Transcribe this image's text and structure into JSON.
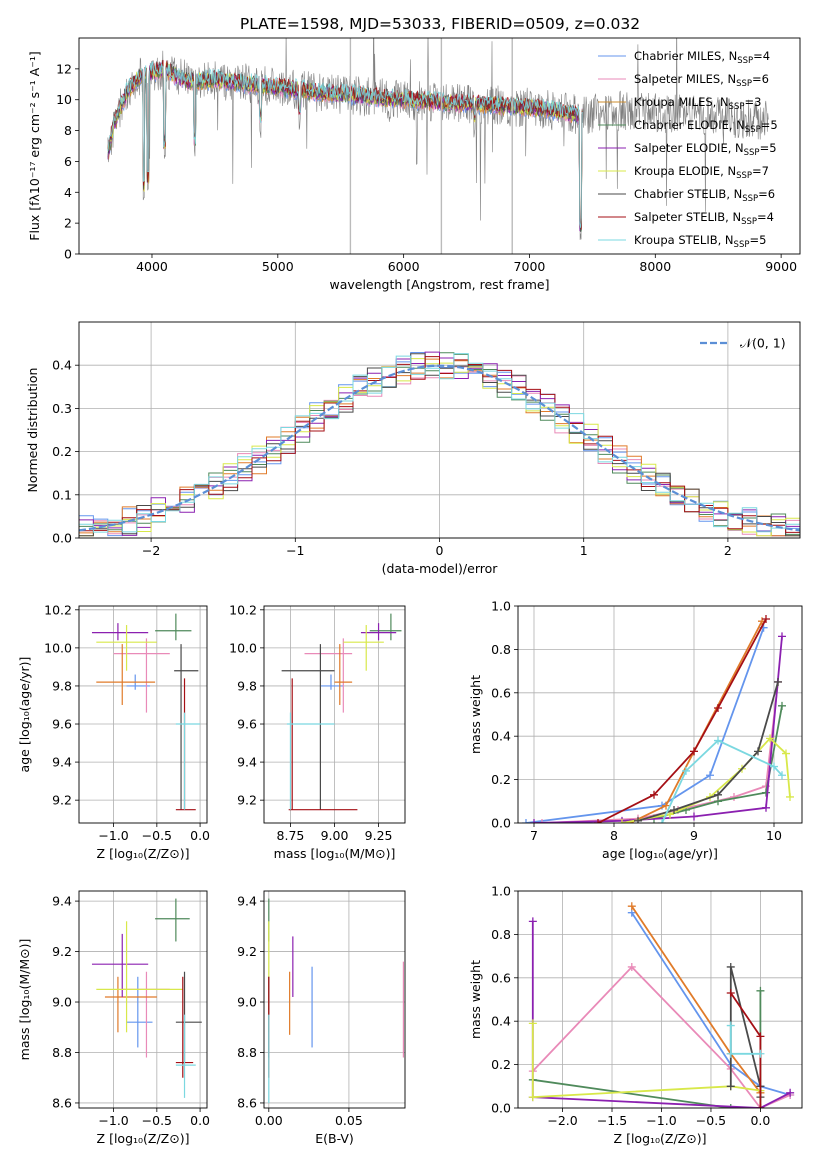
{
  "figure_title": "PLATE=1598, MJD=53033, FIBERID=0509, z=0.032",
  "colors": {
    "Chabrier MILES": "#6495ed",
    "Salpeter MILES": "#e98ab8",
    "Kroupa MILES": "#cc8c2e",
    "Chabrier ELODIE": "#4f8a5b",
    "Salpeter ELODIE": "#8b20b0",
    "Kroupa ELODIE": "#d8e84a",
    "Chabrier STELIB": "#4a4a4a",
    "Salpeter STELIB": "#a50f15",
    "Kroupa STELIB": "#7bd8e0",
    "Orange": "#e07b2a",
    "Pink": "#e377c2",
    "Gray": "#7f7f7f"
  },
  "chart_data": [
    {
      "id": "spectrum",
      "type": "line",
      "title": "PLATE=1598, MJD=53033, FIBERID=0509, z=0.032",
      "xlabel": "wavelength [Angstrom, rest frame]",
      "ylabel": "Flux [fλ10⁻¹⁷ erg cm⁻² s⁻¹ A⁻¹]",
      "xlim": [
        3420,
        9150
      ],
      "ylim": [
        0,
        14
      ],
      "xticks": [
        4000,
        5000,
        6000,
        7000,
        8000,
        9000
      ],
      "yticks": [
        0,
        2,
        4,
        6,
        8,
        10,
        12
      ],
      "grid": false,
      "legend_position": "top-right",
      "legend": [
        {
          "label": "Chabrier MILES, N",
          "sub": "SSP",
          "tail": "=4",
          "color": "#6495ed"
        },
        {
          "label": "Salpeter MILES, N",
          "sub": "SSP",
          "tail": "=6",
          "color": "#e98ab8"
        },
        {
          "label": "Kroupa MILES, N",
          "sub": "SSP",
          "tail": "=3",
          "color": "#cc8c2e"
        },
        {
          "label": "Chabrier ELODIE, N",
          "sub": "SSP",
          "tail": "=5",
          "color": "#4f8a5b"
        },
        {
          "label": "Salpeter ELODIE, N",
          "sub": "SSP",
          "tail": "=5",
          "color": "#8b20b0"
        },
        {
          "label": "Kroupa ELODIE, N",
          "sub": "SSP",
          "tail": "=7",
          "color": "#d8e84a"
        },
        {
          "label": "Chabrier STELIB, N",
          "sub": "SSP",
          "tail": "=6",
          "color": "#4a4a4a"
        },
        {
          "label": "Salpeter STELIB, N",
          "sub": "SSP",
          "tail": "=4",
          "color": "#a50f15"
        },
        {
          "label": "Kroupa STELIB, N",
          "sub": "SSP",
          "tail": "=5",
          "color": "#7bd8e0"
        }
      ],
      "continuum_x": [
        3650,
        3700,
        3800,
        3900,
        4000,
        4100,
        4200,
        4300,
        4500,
        4800,
        5000,
        5300,
        5600,
        6000,
        6400,
        6800,
        7000,
        7200,
        7400,
        7500,
        7700,
        8000,
        8300,
        8600,
        8900
      ],
      "continuum_y": [
        6.5,
        8.5,
        10.5,
        11.5,
        11.8,
        12.0,
        11.5,
        11.2,
        11.3,
        11.0,
        10.8,
        10.5,
        10.3,
        10.0,
        9.8,
        9.6,
        9.5,
        9.3,
        9.0,
        9.1,
        9.3,
        9.2,
        9.0,
        8.8,
        8.7
      ],
      "absorption_lines": [
        {
          "x": 3934,
          "y": 3.0
        },
        {
          "x": 3968,
          "y": 3.5
        },
        {
          "x": 4101,
          "y": 5.8
        },
        {
          "x": 4340,
          "y": 6.0
        },
        {
          "x": 4861,
          "y": 7.5
        },
        {
          "x": 5175,
          "y": 8.0
        },
        {
          "x": 5890,
          "y": 8.5
        },
        {
          "x": 6563,
          "y": 7.5
        },
        {
          "x": 7405,
          "y": 0.4
        },
        {
          "x": 8540,
          "y": 7.0
        },
        {
          "x": 8662,
          "y": 7.0
        }
      ],
      "model_range": [
        3650,
        7420
      ],
      "data_range": [
        3650,
        8900
      ]
    },
    {
      "id": "residual_hist",
      "type": "histogram",
      "xlabel": "(data-model)/error",
      "ylabel": "Normed distribution",
      "xlim": [
        -2.5,
        2.5
      ],
      "ylim": [
        0,
        0.5
      ],
      "xticks": [
        -2,
        -1,
        0,
        1,
        2
      ],
      "yticks": [
        0.0,
        0.1,
        0.2,
        0.3,
        0.4
      ],
      "grid": true,
      "legend_position": "top-right",
      "legend_label": "𝒩(0, 1)",
      "legend_color": "#5b8fd6",
      "bin_width": 0.1,
      "series": [
        {
          "color": "#6495ed",
          "seed": 1
        },
        {
          "color": "#e98ab8",
          "seed": 2
        },
        {
          "color": "#e07b2a",
          "seed": 3
        },
        {
          "color": "#4f8a5b",
          "seed": 4
        },
        {
          "color": "#8b20b0",
          "seed": 5
        },
        {
          "color": "#d8e84a",
          "seed": 6
        },
        {
          "color": "#4a4a4a",
          "seed": 7
        },
        {
          "color": "#a50f15",
          "seed": 8
        },
        {
          "color": "#7bd8e0",
          "seed": 9
        }
      ]
    },
    {
      "id": "age_vs_Z",
      "type": "errorbar",
      "xlabel": "Z [log₁₀(Z/Z⊙)]",
      "ylabel": "age  [log₁₀(age/yr)]",
      "xlim": [
        -1.4,
        0.08
      ],
      "ylim": [
        9.08,
        10.22
      ],
      "xticks": [
        -1.0,
        -0.5,
        0.0
      ],
      "xticklabels": [
        "−1.0",
        "−0.5",
        "0.0"
      ],
      "yticks": [
        9.2,
        9.4,
        9.6,
        9.8,
        10.0,
        10.2
      ],
      "grid": true,
      "points": [
        {
          "x": -0.75,
          "xl": -0.85,
          "xh": -0.58,
          "y": 9.8,
          "yl": 9.78,
          "yh": 9.86,
          "color": "#6495ed"
        },
        {
          "x": -0.62,
          "xl": -1.0,
          "xh": -0.35,
          "y": 9.97,
          "yl": 9.66,
          "yh": 10.05,
          "color": "#e98ab8"
        },
        {
          "x": -0.9,
          "xl": -1.2,
          "xh": -0.52,
          "y": 9.82,
          "yl": 9.7,
          "yh": 10.02,
          "color": "#e07b2a"
        },
        {
          "x": -0.28,
          "xl": -0.52,
          "xh": -0.1,
          "y": 10.09,
          "yl": 10.04,
          "yh": 10.18,
          "color": "#4f8a5b"
        },
        {
          "x": -0.95,
          "xl": -1.25,
          "xh": -0.6,
          "y": 10.08,
          "yl": 10.04,
          "yh": 10.13,
          "color": "#8b20b0"
        },
        {
          "x": -0.85,
          "xl": -1.2,
          "xh": -0.5,
          "y": 10.03,
          "yl": 9.88,
          "yh": 10.12,
          "color": "#d8e84a"
        },
        {
          "x": -0.22,
          "xl": -0.3,
          "xh": -0.02,
          "y": 9.88,
          "yl": 9.15,
          "yh": 10.02,
          "color": "#4a4a4a"
        },
        {
          "x": -0.18,
          "xl": -0.28,
          "xh": -0.05,
          "y": 9.15,
          "yl": 9.15,
          "yh": 9.84,
          "color": "#a50f15"
        },
        {
          "x": -0.18,
          "xl": -0.28,
          "xh": 0.0,
          "y": 9.6,
          "yl": 9.15,
          "yh": 9.66,
          "color": "#7bd8e0"
        }
      ]
    },
    {
      "id": "age_vs_mass",
      "type": "errorbar",
      "xlabel": "mass [log₁₀(M/M⊙)]",
      "ylabel": "",
      "xlim": [
        8.6,
        9.4
      ],
      "ylim": [
        9.08,
        10.22
      ],
      "xticks": [
        8.75,
        9.0,
        9.25
      ],
      "xticklabels": [
        "8.75",
        "9.00",
        "9.25"
      ],
      "yticks": [
        9.2,
        9.4,
        9.6,
        9.8,
        10.0,
        10.2
      ],
      "grid": true,
      "points": [
        {
          "x": 8.98,
          "xl": 8.92,
          "xh": 9.05,
          "y": 9.8,
          "yl": 9.78,
          "yh": 9.86,
          "color": "#6495ed"
        },
        {
          "x": 9.05,
          "xl": 8.83,
          "xh": 9.1,
          "y": 9.97,
          "yl": 9.66,
          "yh": 10.05,
          "color": "#e98ab8"
        },
        {
          "x": 9.03,
          "xl": 9.0,
          "xh": 9.1,
          "y": 9.82,
          "yl": 9.7,
          "yh": 10.02,
          "color": "#e07b2a"
        },
        {
          "x": 9.32,
          "xl": 9.2,
          "xh": 9.38,
          "y": 10.09,
          "yl": 10.04,
          "yh": 10.18,
          "color": "#4f8a5b"
        },
        {
          "x": 9.25,
          "xl": 9.15,
          "xh": 9.35,
          "y": 10.08,
          "yl": 10.04,
          "yh": 10.13,
          "color": "#8b20b0"
        },
        {
          "x": 9.18,
          "xl": 9.05,
          "xh": 9.28,
          "y": 10.03,
          "yl": 9.88,
          "yh": 10.12,
          "color": "#d8e84a"
        },
        {
          "x": 8.92,
          "xl": 8.7,
          "xh": 9.0,
          "y": 9.88,
          "yl": 9.15,
          "yh": 10.02,
          "color": "#4a4a4a"
        },
        {
          "x": 8.76,
          "xl": 8.74,
          "xh": 9.13,
          "y": 9.15,
          "yl": 9.15,
          "yh": 9.84,
          "color": "#a50f15"
        },
        {
          "x": 8.75,
          "xl": 8.73,
          "xh": 9.0,
          "y": 9.6,
          "yl": 9.15,
          "yh": 9.66,
          "color": "#7bd8e0"
        }
      ]
    },
    {
      "id": "massweight_vs_age",
      "type": "line",
      "xlabel": "age  [log₁₀(age/yr)]",
      "ylabel": "mass weight",
      "xlim": [
        6.8,
        10.35
      ],
      "ylim": [
        0,
        1.0
      ],
      "xticks": [
        7,
        8,
        9,
        10
      ],
      "yticks": [
        0.0,
        0.2,
        0.4,
        0.6,
        0.8,
        1.0
      ],
      "grid": true,
      "series": [
        {
          "color": "#6495ed",
          "x": [
            6.9,
            8.6,
            9.2,
            9.87
          ],
          "y": [
            0.0,
            0.08,
            0.22,
            0.9
          ]
        },
        {
          "color": "#e98ab8",
          "x": [
            7.1,
            8.3,
            8.8,
            9.5,
            9.9,
            10.05
          ],
          "y": [
            0.0,
            0.02,
            0.06,
            0.12,
            0.17,
            0.65
          ]
        },
        {
          "color": "#e07b2a",
          "x": [
            8.2,
            8.65,
            9.0,
            9.85
          ],
          "y": [
            0.0,
            0.08,
            0.33,
            0.93
          ]
        },
        {
          "color": "#4f8a5b",
          "x": [
            8.5,
            8.7,
            8.9,
            9.3,
            9.9,
            10.1
          ],
          "y": [
            0.02,
            0.04,
            0.06,
            0.1,
            0.14,
            0.54
          ]
        },
        {
          "color": "#8b20b0",
          "x": [
            7.0,
            8.1,
            9.0,
            9.9,
            10.1
          ],
          "y": [
            0.0,
            0.01,
            0.03,
            0.07,
            0.86
          ]
        },
        {
          "color": "#d8e84a",
          "x": [
            8.1,
            8.7,
            9.2,
            9.6,
            9.95,
            10.15,
            10.2
          ],
          "y": [
            0.0,
            0.04,
            0.12,
            0.25,
            0.39,
            0.32,
            0.12
          ]
        },
        {
          "color": "#4a4a4a",
          "x": [
            8.3,
            8.75,
            9.3,
            9.8,
            10.05
          ],
          "y": [
            0.01,
            0.06,
            0.13,
            0.33,
            0.65
          ]
        },
        {
          "color": "#a50f15",
          "x": [
            7.8,
            8.5,
            9.0,
            9.3,
            9.9
          ],
          "y": [
            0.0,
            0.13,
            0.33,
            0.53,
            0.94
          ]
        },
        {
          "color": "#7bd8e0",
          "x": [
            8.6,
            8.9,
            9.3,
            10.0,
            10.1
          ],
          "y": [
            0.0,
            0.24,
            0.38,
            0.26,
            0.22
          ]
        }
      ]
    },
    {
      "id": "mass_vs_Z",
      "type": "errorbar",
      "xlabel": "Z [log₁₀(Z/Z⊙)]",
      "ylabel": "mass [log₁₀(M/M⊙)]",
      "xlim": [
        -1.4,
        0.08
      ],
      "ylim": [
        8.58,
        9.44
      ],
      "xticks": [
        -1.0,
        -0.5,
        0.0
      ],
      "xticklabels": [
        "−1.0",
        "−0.5",
        "0.0"
      ],
      "yticks": [
        8.6,
        8.8,
        9.0,
        9.2,
        9.4
      ],
      "grid": true,
      "points": [
        {
          "x": -0.72,
          "xl": -0.85,
          "xh": -0.55,
          "y": 8.92,
          "yl": 8.82,
          "yh": 9.1,
          "color": "#6495ed"
        },
        {
          "x": -0.62,
          "xl": -0.9,
          "xh": -0.35,
          "y": 9.05,
          "yl": 8.78,
          "yh": 9.12,
          "color": "#e98ab8"
        },
        {
          "x": -0.95,
          "xl": -1.1,
          "xh": -0.5,
          "y": 9.02,
          "yl": 8.88,
          "yh": 9.1,
          "color": "#e07b2a"
        },
        {
          "x": -0.28,
          "xl": -0.52,
          "xh": -0.12,
          "y": 9.33,
          "yl": 9.24,
          "yh": 9.41,
          "color": "#4f8a5b"
        },
        {
          "x": -0.9,
          "xl": -1.25,
          "xh": -0.6,
          "y": 9.15,
          "yl": 9.02,
          "yh": 9.27,
          "color": "#8b20b0"
        },
        {
          "x": -0.85,
          "xl": -1.2,
          "xh": -0.2,
          "y": 9.05,
          "yl": 8.88,
          "yh": 9.32,
          "color": "#d8e84a"
        },
        {
          "x": -0.18,
          "xl": -0.28,
          "xh": 0.02,
          "y": 8.92,
          "yl": 8.76,
          "yh": 9.12,
          "color": "#4a4a4a"
        },
        {
          "x": -0.2,
          "xl": -0.28,
          "xh": -0.08,
          "y": 8.76,
          "yl": 8.7,
          "yh": 9.1,
          "color": "#a50f15"
        },
        {
          "x": -0.18,
          "xl": -0.28,
          "xh": -0.05,
          "y": 8.75,
          "yl": 8.62,
          "yh": 8.95,
          "color": "#7bd8e0"
        }
      ]
    },
    {
      "id": "mass_vs_ebv",
      "type": "errorbar",
      "xlabel": "E(B-V)",
      "ylabel": "",
      "xlim": [
        -0.003,
        0.085
      ],
      "ylim": [
        8.58,
        9.44
      ],
      "xticks": [
        0.0,
        0.05
      ],
      "xticklabels": [
        "0.00",
        "0.05"
      ],
      "yticks": [
        8.6,
        8.8,
        9.0,
        9.2,
        9.4
      ],
      "grid": true,
      "points": [
        {
          "x": 0.027,
          "xl": 0.027,
          "xh": 0.027,
          "y": 8.92,
          "yl": 8.82,
          "yh": 9.14,
          "color": "#6495ed"
        },
        {
          "x": 0.084,
          "xl": 0.084,
          "xh": 0.084,
          "y": 9.0,
          "yl": 8.78,
          "yh": 9.16,
          "color": "#e98ab8"
        },
        {
          "x": 0.013,
          "xl": 0.013,
          "xh": 0.013,
          "y": 9.02,
          "yl": 8.87,
          "yh": 9.12,
          "color": "#e07b2a"
        },
        {
          "x": 0.0,
          "xl": 0.0,
          "xh": 0.0,
          "y": 9.33,
          "yl": 9.24,
          "yh": 9.41,
          "color": "#4f8a5b"
        },
        {
          "x": 0.015,
          "xl": 0.015,
          "xh": 0.015,
          "y": 9.15,
          "yl": 9.02,
          "yh": 9.26,
          "color": "#8b20b0"
        },
        {
          "x": 0.0,
          "xl": 0.0,
          "xh": 0.0,
          "y": 9.15,
          "yl": 8.88,
          "yh": 9.32,
          "color": "#d8e84a"
        },
        {
          "x": 0.0,
          "xl": 0.0,
          "xh": 0.0,
          "y": 8.92,
          "yl": 8.78,
          "yh": 9.1,
          "color": "#4a4a4a"
        },
        {
          "x": 0.0,
          "xl": 0.0,
          "xh": 0.0,
          "y": 8.76,
          "yl": 8.7,
          "yh": 9.1,
          "color": "#a50f15"
        },
        {
          "x": 0.0,
          "xl": 0.0,
          "xh": 0.0,
          "y": 8.72,
          "yl": 8.6,
          "yh": 8.95,
          "color": "#7bd8e0"
        }
      ]
    },
    {
      "id": "massweight_vs_Z",
      "type": "line",
      "xlabel": "Z [log₁₀(Z/Z⊙)]",
      "ylabel": "mass weight",
      "xlim": [
        -2.45,
        0.42
      ],
      "ylim": [
        0,
        1.0
      ],
      "xticks": [
        -2.0,
        -1.5,
        -1.0,
        -0.5,
        0.0
      ],
      "xticklabels": [
        "−2.0",
        "−1.5",
        "−1.0",
        "−0.5",
        "0.0"
      ],
      "yticks": [
        0.0,
        0.2,
        0.4,
        0.6,
        0.8,
        1.0
      ],
      "grid": true,
      "series": [
        {
          "color": "#6495ed",
          "x": [
            -1.3,
            -0.3,
            0.0,
            0.3
          ],
          "y": [
            0.9,
            0.2,
            0.1,
            0.06
          ]
        },
        {
          "color": "#e98ab8",
          "x": [
            -2.3,
            -1.3,
            -0.3,
            0.0,
            0.3
          ],
          "y": [
            0.17,
            0.65,
            0.18,
            0.0,
            0.06
          ]
        },
        {
          "color": "#e07b2a",
          "x": [
            -1.3,
            -0.3,
            0.0
          ],
          "y": [
            0.93,
            0.25,
            0.07
          ]
        },
        {
          "color": "#4f8a5b",
          "x": [
            -2.3,
            -0.3,
            0.0,
            0.0
          ],
          "y": [
            0.13,
            0.0,
            0.0,
            0.54
          ]
        },
        {
          "color": "#8b20b0",
          "x": [
            -2.3,
            -2.3,
            0.0,
            0.3
          ],
          "y": [
            0.86,
            0.05,
            0.0,
            0.07
          ]
        },
        {
          "color": "#d8e84a",
          "x": [
            -2.3,
            -2.3,
            -0.3,
            0.0
          ],
          "y": [
            0.39,
            0.05,
            0.1,
            0.08
          ]
        },
        {
          "color": "#4a4a4a",
          "x": [
            -0.3,
            -0.3,
            0.0,
            0.0
          ],
          "y": [
            0.1,
            0.65,
            0.1,
            0.05
          ]
        },
        {
          "color": "#a50f15",
          "x": [
            -0.3,
            0.0,
            0.0
          ],
          "y": [
            0.53,
            0.33,
            0.0
          ]
        },
        {
          "color": "#7bd8e0",
          "x": [
            -0.3,
            -0.3,
            0.0
          ],
          "y": [
            0.38,
            0.25,
            0.25
          ]
        }
      ]
    }
  ]
}
